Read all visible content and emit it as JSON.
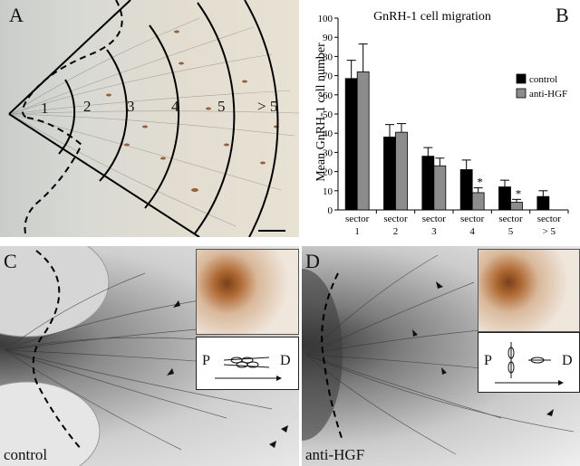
{
  "panel_a": {
    "letter": "A",
    "sectors": [
      "1",
      "2",
      "3",
      "4",
      "5",
      "> 5"
    ]
  },
  "panel_b": {
    "letter": "B"
  },
  "panel_c": {
    "letter": "C",
    "label": "control",
    "schematic": {
      "p": "P",
      "d": "D"
    }
  },
  "panel_d": {
    "letter": "D",
    "label": "anti-HGF",
    "schematic": {
      "p": "P",
      "d": "D"
    }
  },
  "colors": {
    "control": "#000000",
    "anti_hgf": "#8c8c8c"
  },
  "chart_data": {
    "type": "bar",
    "title": "GnRH-1 cell migration",
    "ylabel": "Mean GnRH-1 cell number",
    "xlabel": "",
    "ylim": [
      0,
      100
    ],
    "yticks": [
      "0",
      "10",
      "20",
      "30",
      "40",
      "50",
      "60",
      "70",
      "80",
      "90",
      "100"
    ],
    "categories": [
      "sector 1",
      "sector 2",
      "sector 3",
      "sector 4",
      "sector 5",
      "sector > 5"
    ],
    "category_lines": [
      [
        "sector",
        "1"
      ],
      [
        "sector",
        "2"
      ],
      [
        "sector",
        "3"
      ],
      [
        "sector",
        "4"
      ],
      [
        "sector",
        "5"
      ],
      [
        "sector",
        "> 5"
      ]
    ],
    "series": [
      {
        "name": "control",
        "values": [
          68.5,
          38,
          28,
          21,
          12,
          7
        ],
        "errors": [
          9.5,
          6.5,
          4.5,
          5,
          3.5,
          3
        ]
      },
      {
        "name": "anti-HGF",
        "values": [
          72,
          40.5,
          23,
          9,
          4,
          null
        ],
        "errors": [
          14.5,
          4.5,
          4,
          2.5,
          1.5,
          null
        ]
      }
    ],
    "significance": [
      "",
      "",
      "",
      "*",
      "*",
      ""
    ],
    "legend_position": "right",
    "grid": false
  }
}
